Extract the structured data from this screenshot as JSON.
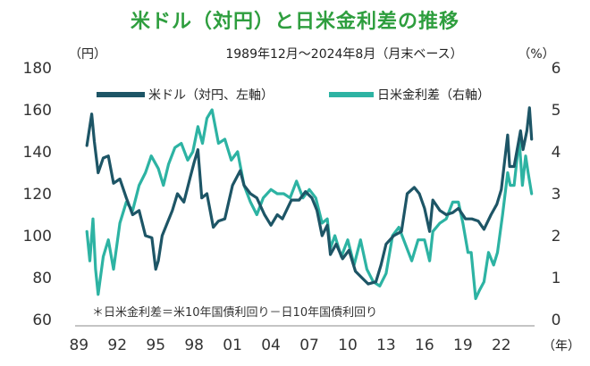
{
  "title": "米ドル（対円）と日米金利差の推移",
  "subtitle": "1989年12月～2024年8月（月末ベース）",
  "left_unit": "（円）",
  "right_unit": "（%）",
  "x_unit": "（年）",
  "note": "＊日米金利差＝米10年国債利回り－日10年国債利回り",
  "colors": {
    "usdjpy": "#1d5566",
    "spread": "#2db3a3",
    "title": "#2e9e3e"
  },
  "chart_data": {
    "type": "line",
    "title": "米ドル（対円）と日米金利差の推移",
    "subtitle": "1989年12月～2024年8月（月末ベース）",
    "x_ticks": [
      "89",
      "92",
      "95",
      "98",
      "01",
      "04",
      "07",
      "10",
      "13",
      "16",
      "19",
      "22"
    ],
    "y_left": {
      "label": "（円）",
      "min": 60,
      "max": 180,
      "ticks": [
        60,
        80,
        100,
        120,
        140,
        160,
        180
      ]
    },
    "y_right": {
      "label": "（%）",
      "min": 0,
      "max": 6,
      "ticks": [
        0,
        1,
        2,
        3,
        4,
        5,
        6
      ]
    },
    "legend_position": "top",
    "grid": false,
    "series": [
      {
        "name": "米ドル（対円、左軸）",
        "axis": "left",
        "x": [
          1989.92,
          1990.3,
          1990.5,
          1990.8,
          1991.2,
          1991.6,
          1992.0,
          1992.5,
          1993.0,
          1993.5,
          1994.0,
          1994.5,
          1995.0,
          1995.3,
          1995.5,
          1995.8,
          1996.2,
          1996.6,
          1997.0,
          1997.5,
          1998.0,
          1998.3,
          1998.6,
          1998.9,
          1999.3,
          1999.8,
          2000.2,
          2000.7,
          2001.0,
          2001.3,
          2001.9,
          2002.2,
          2002.7,
          2003.2,
          2003.8,
          2004.3,
          2004.8,
          2005.2,
          2005.9,
          2006.5,
          2007.0,
          2007.5,
          2007.9,
          2008.3,
          2008.7,
          2008.95,
          2009.4,
          2009.9,
          2010.4,
          2010.9,
          2011.4,
          2011.9,
          2012.5,
          2012.9,
          2013.3,
          2013.9,
          2014.5,
          2014.95,
          2015.5,
          2015.9,
          2016.3,
          2016.7,
          2016.95,
          2017.5,
          2018.0,
          2018.5,
          2018.95,
          2019.5,
          2020.0,
          2020.5,
          2020.95,
          2021.5,
          2021.95,
          2022.3,
          2022.8,
          2022.95,
          2023.3,
          2023.8,
          2024.0,
          2024.3,
          2024.5,
          2024.67
        ],
        "values": [
          143,
          158,
          145,
          130,
          137,
          138,
          125,
          127,
          118,
          110,
          112,
          100,
          99,
          84,
          88,
          100,
          106,
          112,
          120,
          116,
          128,
          135,
          141,
          118,
          120,
          104,
          107,
          108,
          116,
          124,
          131,
          124,
          120,
          118,
          110,
          105,
          110,
          108,
          117,
          117,
          121,
          118,
          112,
          100,
          105,
          91,
          96,
          89,
          93,
          83,
          80,
          77,
          78,
          86,
          96,
          100,
          102,
          120,
          123,
          120,
          113,
          102,
          117,
          112,
          110,
          111,
          113,
          108,
          108,
          107,
          103,
          110,
          115,
          122,
          148,
          133,
          133,
          150,
          141,
          150,
          161,
          146
        ]
      },
      {
        "name": "日米金利差（右軸）",
        "axis": "right",
        "x": [
          1989.92,
          1990.15,
          1990.4,
          1990.6,
          1990.8,
          1991.2,
          1991.6,
          1992.0,
          1992.5,
          1993.0,
          1993.5,
          1994.0,
          1994.5,
          1994.95,
          1995.5,
          1995.9,
          1996.3,
          1996.8,
          1997.3,
          1997.8,
          1998.2,
          1998.6,
          1998.95,
          1999.3,
          1999.7,
          2000.2,
          2000.7,
          2001.2,
          2001.7,
          2002.2,
          2002.7,
          2003.2,
          2003.7,
          2004.3,
          2004.8,
          2005.3,
          2005.8,
          2006.3,
          2006.8,
          2007.3,
          2007.8,
          2008.3,
          2008.7,
          2008.95,
          2009.3,
          2009.8,
          2010.3,
          2010.8,
          2011.3,
          2011.8,
          2012.3,
          2012.8,
          2013.3,
          2013.8,
          2014.3,
          2014.8,
          2015.3,
          2015.8,
          2016.3,
          2016.7,
          2016.95,
          2017.5,
          2018.0,
          2018.5,
          2018.95,
          2019.3,
          2019.7,
          2019.95,
          2020.3,
          2020.6,
          2020.95,
          2021.3,
          2021.7,
          2022.0,
          2022.4,
          2022.8,
          2023.0,
          2023.3,
          2023.7,
          2023.95,
          2024.2,
          2024.4,
          2024.67
        ],
        "values": [
          2.1,
          1.4,
          2.4,
          1.2,
          0.6,
          1.5,
          1.9,
          1.2,
          2.3,
          2.8,
          2.6,
          3.2,
          3.5,
          3.9,
          3.6,
          3.2,
          3.7,
          4.1,
          4.2,
          3.8,
          4.0,
          4.6,
          4.2,
          4.8,
          5.0,
          4.2,
          4.3,
          3.8,
          4.0,
          3.2,
          2.8,
          2.5,
          2.9,
          3.1,
          3.0,
          3.0,
          2.9,
          3.3,
          2.9,
          3.1,
          2.9,
          2.3,
          2.4,
          1.7,
          2.0,
          1.5,
          1.9,
          1.3,
          1.9,
          1.2,
          0.9,
          0.8,
          1.1,
          2.0,
          2.2,
          1.8,
          1.4,
          1.9,
          1.9,
          1.4,
          2.1,
          2.3,
          2.4,
          2.8,
          2.8,
          2.3,
          1.6,
          1.6,
          0.5,
          0.7,
          0.9,
          1.6,
          1.3,
          1.6,
          2.5,
          3.5,
          3.2,
          3.2,
          4.3,
          3.2,
          3.9,
          3.5,
          3.0
        ]
      }
    ]
  }
}
